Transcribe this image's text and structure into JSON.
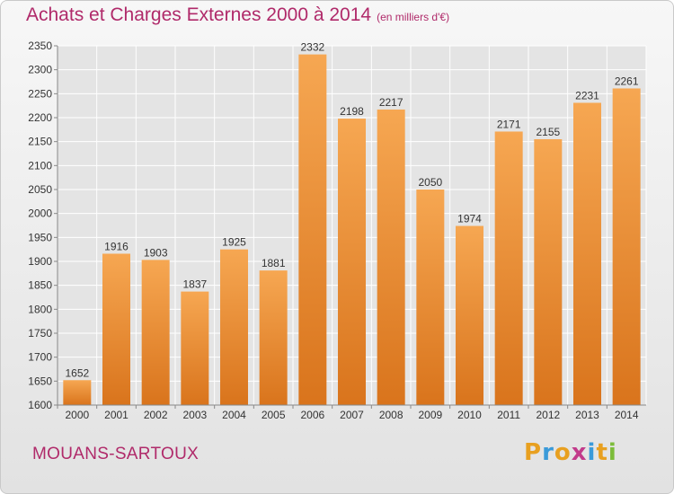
{
  "header": {
    "title": "Achats et Charges Externes 2000 à 2014",
    "unit_note": "(en milliers d'€)"
  },
  "footer": {
    "city": "MOUANS-SARTOUX",
    "logo_letters": [
      "P",
      "r",
      "o",
      "x",
      "i",
      "t",
      "i"
    ]
  },
  "colors": {
    "title": "#b02a6a",
    "bar_light": "#f6a752",
    "bar_dark": "#d9741c",
    "grid": "#ffffff",
    "logo": [
      "#e8a020",
      "#3a9ad9",
      "#e8a020",
      "#c23b8b",
      "#3a9ad9",
      "#e8a020",
      "#7cbc3a"
    ]
  },
  "chart_data": {
    "type": "bar",
    "title": "Achats et Charges Externes 2000 à 2014",
    "subtitle": "(en milliers d'€)",
    "categories": [
      "2000",
      "2001",
      "2002",
      "2003",
      "2004",
      "2005",
      "2006",
      "2007",
      "2008",
      "2009",
      "2010",
      "2011",
      "2012",
      "2013",
      "2014"
    ],
    "values": [
      1652,
      1916,
      1903,
      1837,
      1925,
      1881,
      2332,
      2198,
      2217,
      2050,
      1974,
      2171,
      2155,
      2231,
      2261
    ],
    "ylim": [
      1600,
      2350
    ],
    "yticks": [
      1600,
      1650,
      1700,
      1750,
      1800,
      1850,
      1900,
      1950,
      2000,
      2050,
      2100,
      2150,
      2200,
      2250,
      2300,
      2350
    ],
    "grid": true,
    "data_labels": true,
    "xlabel": "",
    "ylabel": ""
  }
}
